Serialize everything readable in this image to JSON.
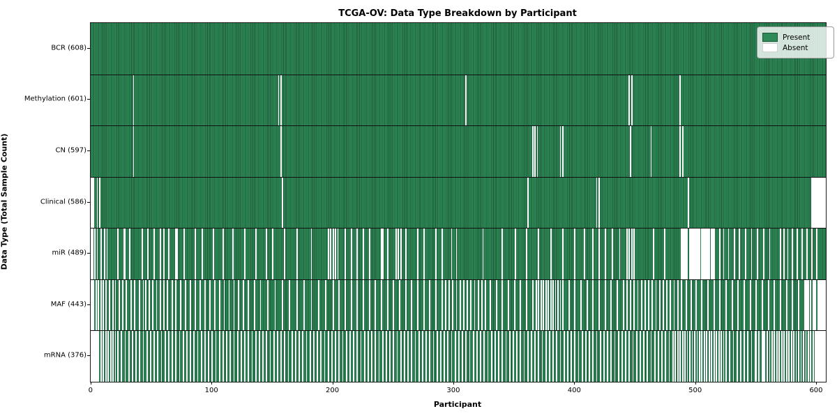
{
  "title": "TCGA-OV: Data Type Breakdown by Participant",
  "xlabel": "Participant",
  "ylabel": "Data Type (Total Sample Count)",
  "legend": {
    "present_label": "Present",
    "absent_label": "Absent"
  },
  "colors": {
    "present": "#2E8B57",
    "present_edge": "#1c5434",
    "absent": "#ffffff"
  },
  "chart_data": {
    "type": "heatmap",
    "title": "TCGA-OV: Data Type Breakdown by Participant",
    "xlabel": "Participant",
    "ylabel": "Data Type (Total Sample Count)",
    "legend_entries": [
      "Present",
      "Absent"
    ],
    "legend_position": "upper right",
    "grid": false,
    "n_participants": 608,
    "xlim": [
      0,
      608
    ],
    "x_ticks": [
      0,
      100,
      200,
      300,
      400,
      500,
      600
    ],
    "rows": [
      {
        "name": "BCR",
        "label": "BCR (608)",
        "present_count": 608,
        "absent_participants": []
      },
      {
        "name": "Methylation",
        "label": "Methylation (601)",
        "present_count": 601,
        "absent_participants": [
          35,
          155,
          157,
          310,
          445,
          447,
          487
        ]
      },
      {
        "name": "CN",
        "label": "CN (597)",
        "present_count": 597,
        "absent_participants": [
          35,
          157,
          365,
          367,
          369,
          388,
          390,
          446,
          463,
          487,
          489
        ]
      },
      {
        "name": "Clinical",
        "label": "Clinical (586)",
        "present_count": 586,
        "absent_participants": [
          0,
          1,
          2,
          5,
          7,
          158,
          361,
          418,
          420,
          494,
          596,
          597,
          598,
          599,
          600,
          601,
          602,
          603,
          604,
          605,
          606,
          607
        ]
      },
      {
        "name": "miR",
        "label": "miR (489)",
        "present_count": 489,
        "absent_participants": [
          0,
          1,
          3,
          5,
          8,
          11,
          13,
          22,
          27,
          28,
          32,
          42,
          47,
          52,
          57,
          60,
          64,
          70,
          71,
          77,
          86,
          92,
          101,
          109,
          117,
          127,
          136,
          145,
          150,
          160,
          170,
          182,
          196,
          198,
          200,
          202,
          204,
          210,
          215,
          220,
          225,
          230,
          240,
          241,
          245,
          252,
          254,
          256,
          260,
          270,
          275,
          285,
          290,
          298,
          302,
          324,
          340,
          351,
          360,
          370,
          380,
          390,
          400,
          408,
          415,
          420,
          425,
          431,
          437,
          443,
          445,
          447,
          449,
          465,
          474,
          488,
          489,
          490,
          491,
          492,
          493,
          495,
          496,
          497,
          498,
          499,
          500,
          501,
          502,
          503,
          505,
          506,
          507,
          508,
          509,
          510,
          511,
          513,
          514,
          515,
          520,
          523,
          527,
          532,
          536,
          541,
          546,
          551,
          556,
          561,
          570,
          573,
          576,
          580,
          584,
          588,
          592,
          596,
          600
        ]
      },
      {
        "name": "MAF",
        "label": "MAF (443)",
        "present_count": 443,
        "absent_participants": [
          0,
          1,
          2,
          4,
          6,
          8,
          10,
          12,
          15,
          18,
          20,
          23,
          26,
          29,
          33,
          36,
          40,
          43,
          45,
          48,
          51,
          54,
          57,
          60,
          63,
          67,
          70,
          74,
          78,
          82,
          86,
          90,
          94,
          98,
          102,
          106,
          110,
          114,
          118,
          122,
          126,
          130,
          135,
          140,
          146,
          152,
          158,
          164,
          170,
          176,
          182,
          188,
          194,
          200,
          205,
          210,
          215,
          220,
          225,
          230,
          235,
          240,
          245,
          250,
          255,
          260,
          265,
          270,
          275,
          280,
          285,
          290,
          293,
          296,
          299,
          302,
          305,
          308,
          311,
          314,
          317,
          320,
          323,
          326,
          330,
          335,
          340,
          345,
          350,
          355,
          360,
          365,
          368,
          370,
          372,
          374,
          376,
          378,
          380,
          382,
          384,
          386,
          388,
          390,
          395,
          400,
          405,
          410,
          415,
          420,
          425,
          430,
          435,
          440,
          443,
          446,
          449,
          452,
          455,
          458,
          461,
          464,
          467,
          470,
          473,
          476,
          479,
          482,
          485,
          488,
          492,
          496,
          500,
          505,
          510,
          515,
          520,
          525,
          530,
          535,
          540,
          545,
          550,
          555,
          560,
          565,
          570,
          575,
          580,
          585,
          590,
          591,
          592,
          593,
          595,
          597,
          598,
          599,
          601,
          602,
          603,
          604,
          605,
          606,
          607
        ]
      },
      {
        "name": "mRNA",
        "label": "mRNA (376)",
        "present_count": 376,
        "absent_participants": [
          0,
          1,
          2,
          4,
          6,
          8,
          10,
          12,
          14,
          16,
          18,
          20,
          22,
          25,
          28,
          31,
          34,
          37,
          40,
          43,
          46,
          49,
          52,
          55,
          58,
          61,
          64,
          67,
          70,
          73,
          76,
          79,
          82,
          85,
          88,
          91,
          94,
          97,
          100,
          103,
          106,
          109,
          112,
          115,
          118,
          121,
          124,
          127,
          130,
          133,
          136,
          139,
          142,
          145,
          148,
          151,
          154,
          157,
          160,
          163,
          166,
          169,
          172,
          175,
          178,
          181,
          184,
          187,
          190,
          193,
          196,
          199,
          202,
          205,
          208,
          211,
          214,
          217,
          220,
          223,
          226,
          229,
          232,
          235,
          238,
          241,
          244,
          247,
          250,
          253,
          256,
          259,
          262,
          265,
          268,
          271,
          274,
          277,
          280,
          283,
          286,
          289,
          292,
          295,
          298,
          301,
          304,
          307,
          310,
          313,
          316,
          319,
          322,
          325,
          328,
          331,
          334,
          337,
          340,
          343,
          346,
          349,
          352,
          355,
          358,
          361,
          364,
          367,
          370,
          373,
          376,
          379,
          382,
          385,
          388,
          391,
          394,
          397,
          400,
          403,
          406,
          409,
          412,
          415,
          418,
          421,
          424,
          427,
          430,
          433,
          436,
          439,
          442,
          445,
          448,
          451,
          454,
          457,
          460,
          463,
          466,
          469,
          472,
          475,
          478,
          481,
          483,
          485,
          487,
          489,
          491,
          493,
          495,
          497,
          499,
          501,
          503,
          505,
          507,
          509,
          511,
          513,
          515,
          517,
          519,
          521,
          523,
          525,
          528,
          531,
          534,
          537,
          540,
          543,
          546,
          549,
          552,
          555,
          557,
          559,
          561,
          563,
          565,
          567,
          569,
          571,
          573,
          575,
          577,
          579,
          581,
          583,
          585,
          587,
          589,
          591,
          593,
          595,
          597,
          599,
          550,
          556,
          600,
          601,
          602,
          603,
          604,
          605,
          606,
          607,
          3,
          5
        ]
      }
    ]
  }
}
